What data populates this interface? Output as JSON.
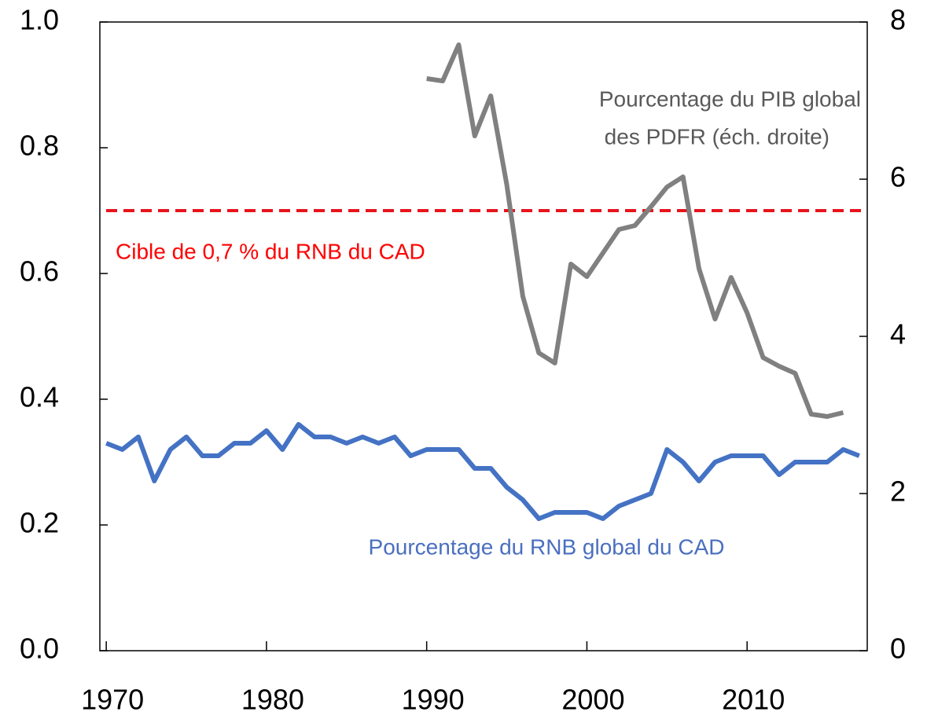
{
  "chart_data": {
    "type": "line",
    "x": [
      1970,
      1971,
      1972,
      1973,
      1974,
      1975,
      1976,
      1977,
      1978,
      1979,
      1980,
      1981,
      1982,
      1983,
      1984,
      1985,
      1986,
      1987,
      1988,
      1989,
      1990,
      1991,
      1992,
      1993,
      1994,
      1995,
      1996,
      1997,
      1998,
      1999,
      2000,
      2001,
      2002,
      2003,
      2004,
      2005,
      2006,
      2007,
      2008,
      2009,
      2010,
      2011,
      2012,
      2013,
      2014,
      2015,
      2016,
      2017
    ],
    "series": [
      {
        "name": "Pourcentage du RNB global du CAD",
        "color": "#4472c4",
        "values": [
          0.33,
          0.32,
          0.34,
          0.27,
          0.32,
          0.34,
          0.31,
          0.31,
          0.33,
          0.33,
          0.35,
          0.32,
          0.36,
          0.34,
          0.34,
          0.33,
          0.34,
          0.33,
          0.34,
          0.31,
          0.32,
          0.32,
          0.32,
          0.29,
          0.29,
          0.26,
          0.24,
          0.21,
          0.22,
          0.22,
          0.22,
          0.21,
          0.23,
          0.24,
          0.25,
          0.32,
          0.3,
          0.27,
          0.3,
          0.31,
          0.31,
          0.31,
          0.28,
          0.3,
          0.3,
          0.3,
          0.32,
          0.31
        ]
      },
      {
        "name": "Pourcentage du PIB global des PDFR (éch. droite)",
        "color": "#808080",
        "axis": "y2",
        "values": [
          null,
          null,
          null,
          null,
          null,
          null,
          null,
          null,
          null,
          null,
          null,
          null,
          null,
          null,
          null,
          null,
          null,
          null,
          null,
          null,
          7.28,
          7.25,
          7.71,
          6.55,
          7.06,
          5.93,
          4.51,
          3.79,
          3.66,
          4.92,
          4.76,
          5.06,
          5.36,
          5.41,
          5.65,
          5.9,
          6.03,
          4.86,
          4.22,
          4.75,
          4.3,
          3.73,
          3.62,
          3.53,
          3.01,
          2.98,
          3.03,
          null
        ]
      }
    ],
    "reference_line": {
      "value": 0.7,
      "color": "#e8141c"
    },
    "annotations": [
      "Pourcentage du PIB global",
      "des PDFR (éch. droite)",
      "Cible de 0,7 % du RNB du CAD",
      "Pourcentage du RNB global du CAD"
    ],
    "xlim": [
      1969.6,
      2017.5
    ],
    "xticks": [
      1970,
      1980,
      1990,
      2000,
      2010
    ],
    "ylim": [
      0,
      1.0
    ],
    "yticks": [
      {
        "value": 0,
        "label": "0.0"
      },
      0.2,
      0.4,
      0.6,
      0.8,
      {
        "value": 1.0,
        "label": "1.0"
      }
    ],
    "y2lim": [
      0,
      8
    ],
    "y2ticks": [
      0,
      2,
      4,
      6,
      8
    ]
  }
}
